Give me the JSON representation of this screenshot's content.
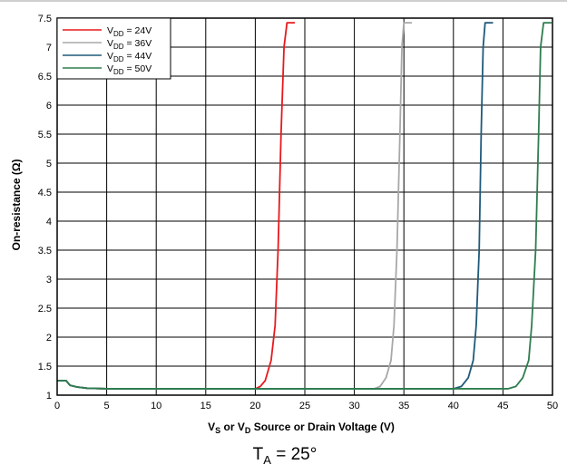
{
  "chart_data": {
    "type": "line",
    "xlabel": {
      "main": "V",
      "sub1": "S",
      "mid": " or V",
      "sub2": "D",
      "tail": " Source or Drain Voltage (V)"
    },
    "ylabel": "On-resistance (Ω)",
    "xlim": [
      0,
      50
    ],
    "ylim": [
      1,
      7.5
    ],
    "x_ticks": [
      "0",
      "5",
      "10",
      "15",
      "20",
      "25",
      "30",
      "35",
      "40",
      "45",
      "50"
    ],
    "y_ticks": [
      "1",
      "1.5",
      "2",
      "2.5",
      "3",
      "3.5",
      "4",
      "4.5",
      "5",
      "5.5",
      "6",
      "6.5",
      "7",
      "7.5"
    ],
    "grid": true,
    "legend_position": "top-left",
    "series": [
      {
        "name": {
          "main": "V",
          "sub": "DD",
          "tail": " = 24V"
        },
        "color": "#e8191c",
        "points": [
          [
            0,
            1.25
          ],
          [
            0.9,
            1.25
          ],
          [
            1.3,
            1.17
          ],
          [
            2,
            1.14
          ],
          [
            3,
            1.12
          ],
          [
            5,
            1.11
          ],
          [
            20,
            1.11
          ],
          [
            20.5,
            1.15
          ],
          [
            21,
            1.25
          ],
          [
            21.6,
            1.6
          ],
          [
            22,
            2.2
          ],
          [
            22.3,
            3.5
          ],
          [
            22.6,
            5.5
          ],
          [
            22.9,
            7.0
          ],
          [
            23.2,
            7.42
          ],
          [
            24.0,
            7.42
          ]
        ]
      },
      {
        "name": {
          "main": "V",
          "sub": "DD",
          "tail": " = 36V"
        },
        "color": "#a7a8aa",
        "points": [
          [
            0,
            1.25
          ],
          [
            0.9,
            1.25
          ],
          [
            1.3,
            1.17
          ],
          [
            2,
            1.14
          ],
          [
            3,
            1.12
          ],
          [
            5,
            1.11
          ],
          [
            32,
            1.11
          ],
          [
            32.6,
            1.15
          ],
          [
            33.2,
            1.3
          ],
          [
            33.7,
            1.6
          ],
          [
            34.0,
            2.2
          ],
          [
            34.3,
            3.5
          ],
          [
            34.6,
            5.5
          ],
          [
            34.8,
            7.0
          ],
          [
            35.0,
            7.42
          ],
          [
            35.8,
            7.42
          ]
        ]
      },
      {
        "name": {
          "main": "V",
          "sub": "DD",
          "tail": " = 44V"
        },
        "color": "#1f5a7a",
        "points": [
          [
            0,
            1.25
          ],
          [
            0.9,
            1.25
          ],
          [
            1.3,
            1.17
          ],
          [
            2,
            1.14
          ],
          [
            3,
            1.12
          ],
          [
            5,
            1.11
          ],
          [
            40,
            1.11
          ],
          [
            40.8,
            1.15
          ],
          [
            41.5,
            1.3
          ],
          [
            42.0,
            1.6
          ],
          [
            42.3,
            2.2
          ],
          [
            42.6,
            3.5
          ],
          [
            42.8,
            5.5
          ],
          [
            43.0,
            7.0
          ],
          [
            43.2,
            7.42
          ],
          [
            44.0,
            7.42
          ]
        ]
      },
      {
        "name": {
          "main": "V",
          "sub": "DD",
          "tail": " = 50V"
        },
        "color": "#2e7d4f",
        "points": [
          [
            0,
            1.25
          ],
          [
            0.9,
            1.25
          ],
          [
            1.3,
            1.17
          ],
          [
            2,
            1.14
          ],
          [
            3,
            1.12
          ],
          [
            5,
            1.11
          ],
          [
            45.5,
            1.11
          ],
          [
            46.3,
            1.15
          ],
          [
            47.0,
            1.3
          ],
          [
            47.6,
            1.6
          ],
          [
            47.9,
            2.2
          ],
          [
            48.3,
            3.5
          ],
          [
            48.6,
            5.5
          ],
          [
            48.8,
            7.0
          ],
          [
            49.1,
            7.42
          ],
          [
            49.9,
            7.42
          ]
        ]
      }
    ]
  },
  "caption": {
    "main": "T",
    "sub": "A",
    "tail": " = 25°"
  }
}
